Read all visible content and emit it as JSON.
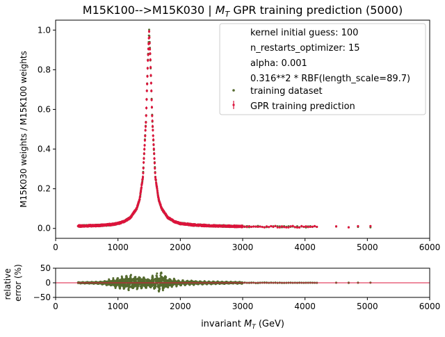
{
  "chart_data": [
    {
      "panel": "main",
      "type": "scatter",
      "title": "M15K100-->M15K030 | $M_T$ GPR training prediction (5000)",
      "title_parts": {
        "before": "M15K100-->M15K030 | ",
        "math": "M",
        "sub": "T",
        "after": " GPR training prediction (5000)"
      },
      "xlabel": "",
      "ylabel": "M15K030 weights / M15K100 weights",
      "xlim": [
        0,
        6000
      ],
      "ylim": [
        -0.05,
        1.05
      ],
      "xticks": [
        "0",
        "1000",
        "2000",
        "3000",
        "4000",
        "5000",
        "6000"
      ],
      "yticks": [
        "0.0",
        "0.2",
        "0.4",
        "0.6",
        "0.8",
        "1.0"
      ],
      "grid": false,
      "legend_position": "top-right",
      "legend": {
        "info_lines": [
          "kernel initial guess: 100",
          "n_restarts_optimizer: 15",
          "alpha: 0.001",
          "0.316**2 * RBF(length_scale=89.7)"
        ],
        "entries": [
          {
            "label": "training dataset",
            "marker": "dot",
            "color": "#556b2f"
          },
          {
            "label": "GPR training prediction",
            "marker": "errorbar",
            "color": "#dc143c"
          }
        ]
      },
      "series": [
        {
          "name": "training dataset",
          "color": "#556b2f",
          "description_points": {
            "peak_mass": 1500,
            "peak_value": 1.0,
            "x": [
              360,
              500,
              700,
              900,
              1000,
              1100,
              1200,
              1300,
              1350,
              1400,
              1450,
              1480,
              1500,
              1520,
              1550,
              1600,
              1650,
              1700,
              1800,
              1900,
              2000,
              2200,
              2500,
              2800,
              3000,
              3500,
              4000,
              4200,
              4500,
              4700,
              4850,
              5050
            ],
            "y": [
              0.012,
              0.013,
              0.015,
              0.02,
              0.025,
              0.035,
              0.055,
              0.1,
              0.15,
              0.26,
              0.55,
              0.85,
              1.0,
              0.85,
              0.55,
              0.26,
              0.15,
              0.1,
              0.055,
              0.035,
              0.025,
              0.018,
              0.013,
              0.011,
              0.01,
              0.009,
              0.008,
              0.008,
              0.008,
              0.008,
              0.008,
              0.008
            ]
          }
        },
        {
          "name": "GPR training prediction",
          "color": "#dc143c",
          "description_points": {
            "x": [
              360,
              500,
              700,
              900,
              1000,
              1100,
              1200,
              1300,
              1350,
              1400,
              1450,
              1480,
              1500,
              1520,
              1550,
              1600,
              1650,
              1700,
              1800,
              1900,
              2000,
              2200,
              2500,
              2800,
              3000,
              3500,
              4000,
              4200,
              4500,
              4700,
              4850,
              5050
            ],
            "y": [
              0.012,
              0.013,
              0.015,
              0.02,
              0.025,
              0.035,
              0.055,
              0.1,
              0.15,
              0.26,
              0.55,
              0.85,
              0.99,
              0.85,
              0.55,
              0.26,
              0.15,
              0.1,
              0.055,
              0.035,
              0.025,
              0.018,
              0.013,
              0.011,
              0.01,
              0.009,
              0.008,
              0.008,
              0.008,
              0.008,
              0.008,
              0.008
            ]
          }
        }
      ]
    },
    {
      "panel": "ratio",
      "type": "scatter",
      "title": "",
      "xlabel": "invariant $M_T$ (GeV)",
      "xlabel_parts": {
        "before": "invariant ",
        "math": "M",
        "sub": "T",
        "after": " (GeV)"
      },
      "ylabel": "relative\nerror (%)",
      "ylabel_lines": [
        "relative",
        "error (%)"
      ],
      "xlim": [
        0,
        6000
      ],
      "ylim": [
        -50,
        50
      ],
      "xticks": [
        "0",
        "1000",
        "2000",
        "3000",
        "4000",
        "5000",
        "6000"
      ],
      "yticks": [
        "50",
        "0",
        "−50"
      ],
      "reference_line": {
        "y": 0,
        "color": "#dc143c"
      },
      "series": [
        {
          "name": "relative error",
          "color": "#556b2f",
          "envelope": {
            "x": [
              360,
              700,
              1000,
              1200,
              1400,
              1500,
              1600,
              1700,
              1800,
              2000,
              2500,
              3000,
              3500,
              4000,
              5050
            ],
            "amplitude_percent": [
              2,
              4,
              20,
              30,
              25,
              20,
              30,
              45,
              20,
              10,
              5,
              3,
              2,
              1,
              1
            ]
          }
        }
      ]
    }
  ]
}
